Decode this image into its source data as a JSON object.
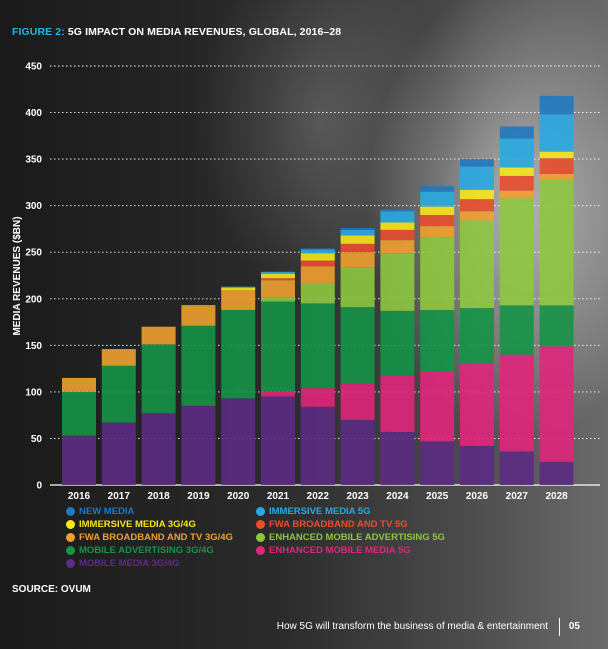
{
  "figure": {
    "label": "FIGURE 2:",
    "title": "5G IMPACT ON MEDIA REVENUES, GLOBAL, 2016–28"
  },
  "source": "SOURCE: OVUM",
  "footer": {
    "caption": "How 5G will transform the business of media & entertainment",
    "page": "05"
  },
  "chart_data": {
    "type": "bar",
    "stacked": true,
    "title": "5G IMPACT ON MEDIA REVENUES, GLOBAL, 2016–28",
    "ylabel": "MEDIA REVENUES ($BN)",
    "xlabel": "",
    "ylim": [
      0,
      450
    ],
    "yticks": [
      0,
      50,
      100,
      150,
      200,
      250,
      300,
      350,
      400,
      450
    ],
    "grid": true,
    "legend_position": "bottom",
    "categories": [
      "2016",
      "2017",
      "2018",
      "2019",
      "2020",
      "2021",
      "2022",
      "2023",
      "2024",
      "2025",
      "2026",
      "2027",
      "2028"
    ],
    "series": [
      {
        "name": "MOBILE MEDIA 3G/4G",
        "color": "#5b2c83",
        "values": [
          53,
          67,
          77,
          85,
          93,
          95,
          84,
          70,
          57,
          47,
          42,
          36,
          25
        ]
      },
      {
        "name": "ENHANCED MOBILE MEDIA 5G",
        "color": "#e0267b",
        "values": [
          0,
          0,
          0,
          0,
          0,
          5,
          20,
          39,
          61,
          75,
          89,
          104,
          124
        ]
      },
      {
        "name": "MOBILE ADVERTISING 3G/4G",
        "color": "#159447",
        "values": [
          47,
          61,
          74,
          86,
          95,
          97,
          91,
          82,
          69,
          66,
          59,
          53,
          44
        ]
      },
      {
        "name": "ENHANCED MOBILE ADVERTISING 5G",
        "color": "#8dc63f",
        "values": [
          0,
          0,
          0,
          0,
          0,
          4,
          22,
          43,
          62,
          78,
          94,
          115,
          135
        ]
      },
      {
        "name": "FWA BROADBAND AND TV 3G/4G",
        "color": "#f0a030",
        "values": [
          15,
          18,
          19,
          21,
          21,
          19,
          18,
          16,
          14,
          12,
          10,
          8,
          6
        ]
      },
      {
        "name": "FWA BROADBAND AND TV 5G",
        "color": "#e84e2c",
        "values": [
          0,
          0,
          0,
          0,
          0,
          2,
          6,
          9,
          11,
          12,
          13,
          16,
          17
        ]
      },
      {
        "name": "IMMERSIVE MEDIA 3G/4G",
        "color": "#f6e61a",
        "values": [
          0,
          0,
          0,
          1,
          3,
          5,
          8,
          9,
          8,
          9,
          10,
          9,
          7
        ]
      },
      {
        "name": "IMMERSIVE MEDIA 5G",
        "color": "#29aae1",
        "values": [
          0,
          0,
          0,
          0,
          1,
          2,
          4,
          6,
          12,
          16,
          25,
          31,
          40
        ]
      },
      {
        "name": "NEW MEDIA",
        "color": "#1f78c1",
        "values": [
          0,
          0,
          0,
          0,
          0,
          0,
          1,
          2,
          2,
          6,
          8,
          13,
          20
        ]
      }
    ]
  },
  "legend_order": [
    {
      "name": "NEW MEDIA",
      "color": "#1f78c1"
    },
    {
      "name": "IMMERSIVE MEDIA 5G",
      "color": "#29aae1"
    },
    {
      "name": "IMMERSIVE MEDIA 3G/4G",
      "color": "#f6e61a"
    },
    {
      "name": "FWA BROADBAND AND TV 5G",
      "color": "#e84e2c"
    },
    {
      "name": "FWA BROADBAND AND TV 3G/4G",
      "color": "#f0a030"
    },
    {
      "name": "ENHANCED MOBILE ADVERTISING 5G",
      "color": "#8dc63f"
    },
    {
      "name": "MOBILE ADVERTISING 3G/4G",
      "color": "#159447"
    },
    {
      "name": "ENHANCED MOBILE MEDIA 5G",
      "color": "#e0267b"
    },
    {
      "name": "MOBILE MEDIA 3G/4G",
      "color": "#5b2c83"
    }
  ]
}
